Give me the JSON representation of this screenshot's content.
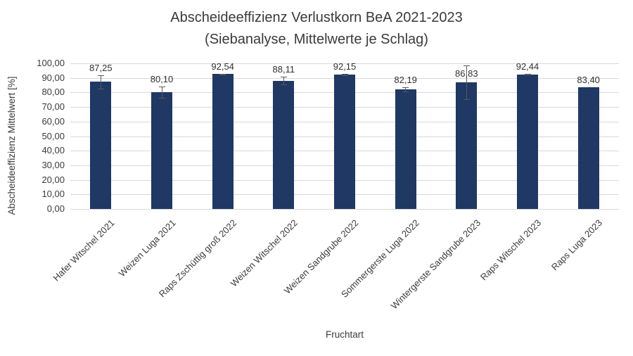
{
  "chart_data": {
    "type": "bar",
    "title": "Abscheideeffizienz Verlustkorn BeA 2021-2023",
    "subtitle": "(Siebanalyse, Mittelwerte je Schlag)",
    "xlabel": "Fruchtart",
    "ylabel": "Abscheideeffizienz Mittelwert [%]",
    "categories": [
      "Hafer Witschel 2021",
      "Weizen Luga 2021",
      "Raps Zschüttig groß 2022",
      "Weizen Witschel 2022",
      "Weizen Sandgrube 2022",
      "Sommergerste Luga 2022",
      "Wintergerste Sandgrube 2023",
      "Raps Witschel 2023",
      "Raps Luga 2023"
    ],
    "values": [
      87.25,
      80.1,
      92.54,
      88.11,
      92.15,
      82.19,
      86.83,
      92.44,
      83.4
    ],
    "value_labels": [
      "87,25",
      "80,10",
      "92,54",
      "88,11",
      "92,15",
      "82,19",
      "86,83",
      "92,44",
      "83,40"
    ],
    "error_bars": [
      4.5,
      4.0,
      0.4,
      2.5,
      0.6,
      1.5,
      11.5,
      0.3,
      0
    ],
    "ylim": [
      0,
      100
    ],
    "ytick_step": 10,
    "yticks": [
      "0,00",
      "10,00",
      "20,00",
      "30,00",
      "40,00",
      "50,00",
      "60,00",
      "70,00",
      "80,00",
      "90,00",
      "100,00"
    ],
    "grid": true,
    "legend": false,
    "bar_color": "#1F3864",
    "gridline_color": "#D9D9D9",
    "error_bar_color": "#595959"
  }
}
